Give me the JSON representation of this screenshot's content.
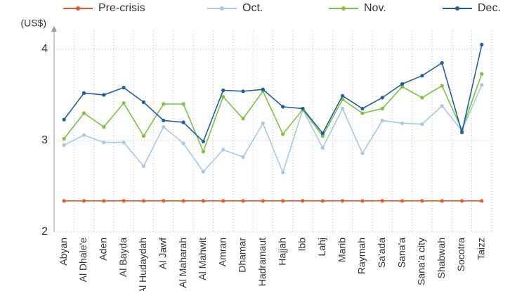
{
  "chart_data": {
    "type": "line",
    "y_label": "(US$)",
    "categories": [
      "Abyan",
      "Al Dhale'e",
      "Aden",
      "Al Bayda",
      "Al Hudaydah",
      "Al Jawf",
      "Al Maharah",
      "Al Mahwit",
      "Amran",
      "Dhamar",
      "Hadramaut",
      "Hajjah",
      "Ibb",
      "Lahj",
      "Marib",
      "Raymah",
      "Sa'ada",
      "Sana'a",
      "Sana'a city",
      "Shabwah",
      "Socotra",
      "Taizz"
    ],
    "series": [
      {
        "name": "Pre-crisis",
        "color": "#e8562a",
        "values": [
          2.34,
          2.34,
          2.34,
          2.34,
          2.34,
          2.34,
          2.34,
          2.34,
          2.34,
          2.34,
          2.34,
          2.34,
          2.34,
          2.34,
          2.34,
          2.34,
          2.34,
          2.34,
          2.34,
          2.34,
          2.34,
          2.34
        ]
      },
      {
        "name": "Oct.",
        "color": "#a8c8e8",
        "values": [
          2.95,
          3.06,
          2.98,
          2.98,
          2.72,
          3.15,
          2.97,
          2.66,
          2.9,
          2.82,
          3.19,
          2.65,
          3.34,
          2.92,
          3.35,
          2.86,
          3.22,
          3.19,
          3.18,
          3.38,
          3.11,
          3.61
        ]
      },
      {
        "name": "Nov.",
        "color": "#7dc242",
        "values": [
          3.02,
          3.3,
          3.15,
          3.41,
          3.05,
          3.4,
          3.4,
          2.88,
          3.48,
          3.24,
          3.54,
          3.07,
          3.34,
          3.05,
          3.45,
          3.3,
          3.35,
          3.59,
          3.47,
          3.6,
          3.12,
          3.73
        ]
      },
      {
        "name": "Dec.",
        "color": "#1f5fa0",
        "values": [
          3.23,
          3.52,
          3.5,
          3.58,
          3.42,
          3.22,
          3.2,
          2.99,
          3.55,
          3.54,
          3.56,
          3.37,
          3.35,
          3.08,
          3.49,
          3.35,
          3.47,
          3.62,
          3.71,
          3.85,
          3.09,
          4.05
        ]
      }
    ],
    "ylim": [
      2,
      4.2
    ],
    "yticks": [
      2,
      3,
      4
    ],
    "grid": true
  }
}
